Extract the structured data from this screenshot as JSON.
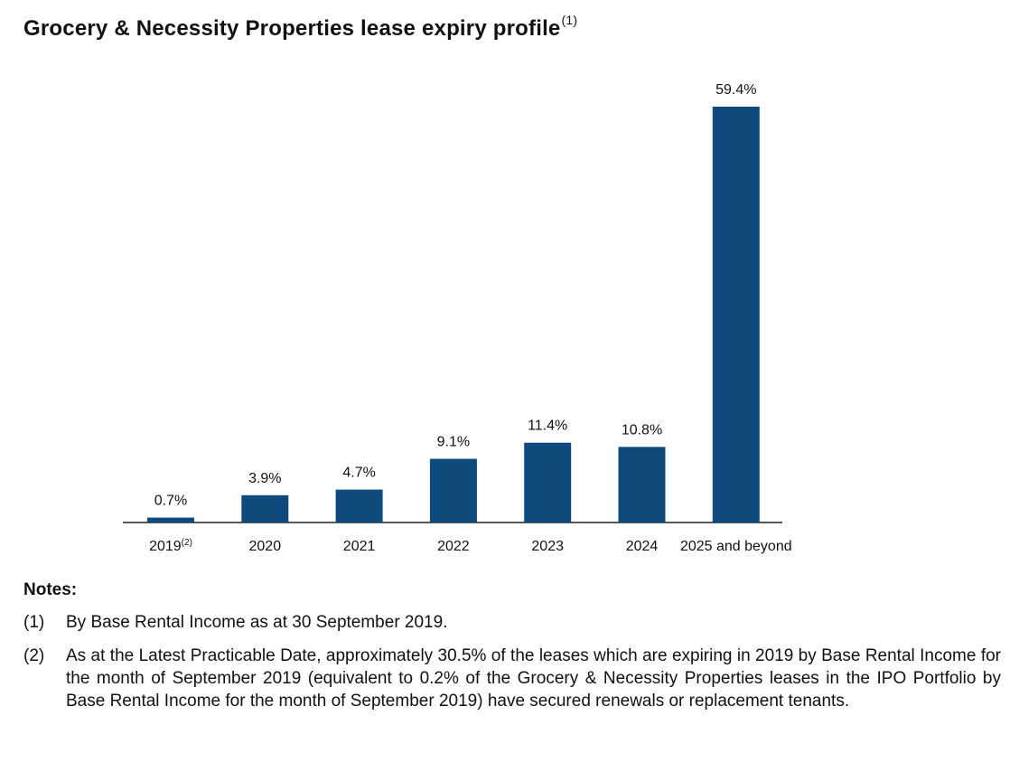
{
  "title": {
    "text": "Grocery & Necessity Properties lease expiry profile",
    "superscript": "(1)"
  },
  "chart_data": {
    "type": "bar",
    "title": "Grocery & Necessity Properties lease expiry profile",
    "categories": [
      "2019",
      "2020",
      "2021",
      "2022",
      "2023",
      "2024",
      "2025 and beyond"
    ],
    "category_superscripts": [
      "(2)",
      "",
      "",
      "",
      "",
      "",
      ""
    ],
    "values": [
      0.7,
      3.9,
      4.7,
      9.1,
      11.4,
      10.8,
      59.4
    ],
    "data_labels": [
      "0.7%",
      "3.9%",
      "4.7%",
      "9.1%",
      "11.4%",
      "10.8%",
      "59.4%"
    ],
    "unit": "%",
    "bar_color": "#0f4a7c",
    "ylim": [
      0,
      60
    ],
    "grid": false,
    "legend": "none"
  },
  "notes": {
    "heading": "Notes:",
    "items": [
      {
        "num": "(1)",
        "text": "By Base Rental Income as at 30 September 2019."
      },
      {
        "num": "(2)",
        "text": "As at the Latest Practicable Date, approximately 30.5% of the leases which are expiring in 2019 by Base Rental Income for the month of September 2019 (equivalent to 0.2% of the Grocery & Necessity Properties leases in the IPO Portfolio by Base Rental Income for the month of September 2019) have secured renewals or replacement tenants."
      }
    ]
  }
}
